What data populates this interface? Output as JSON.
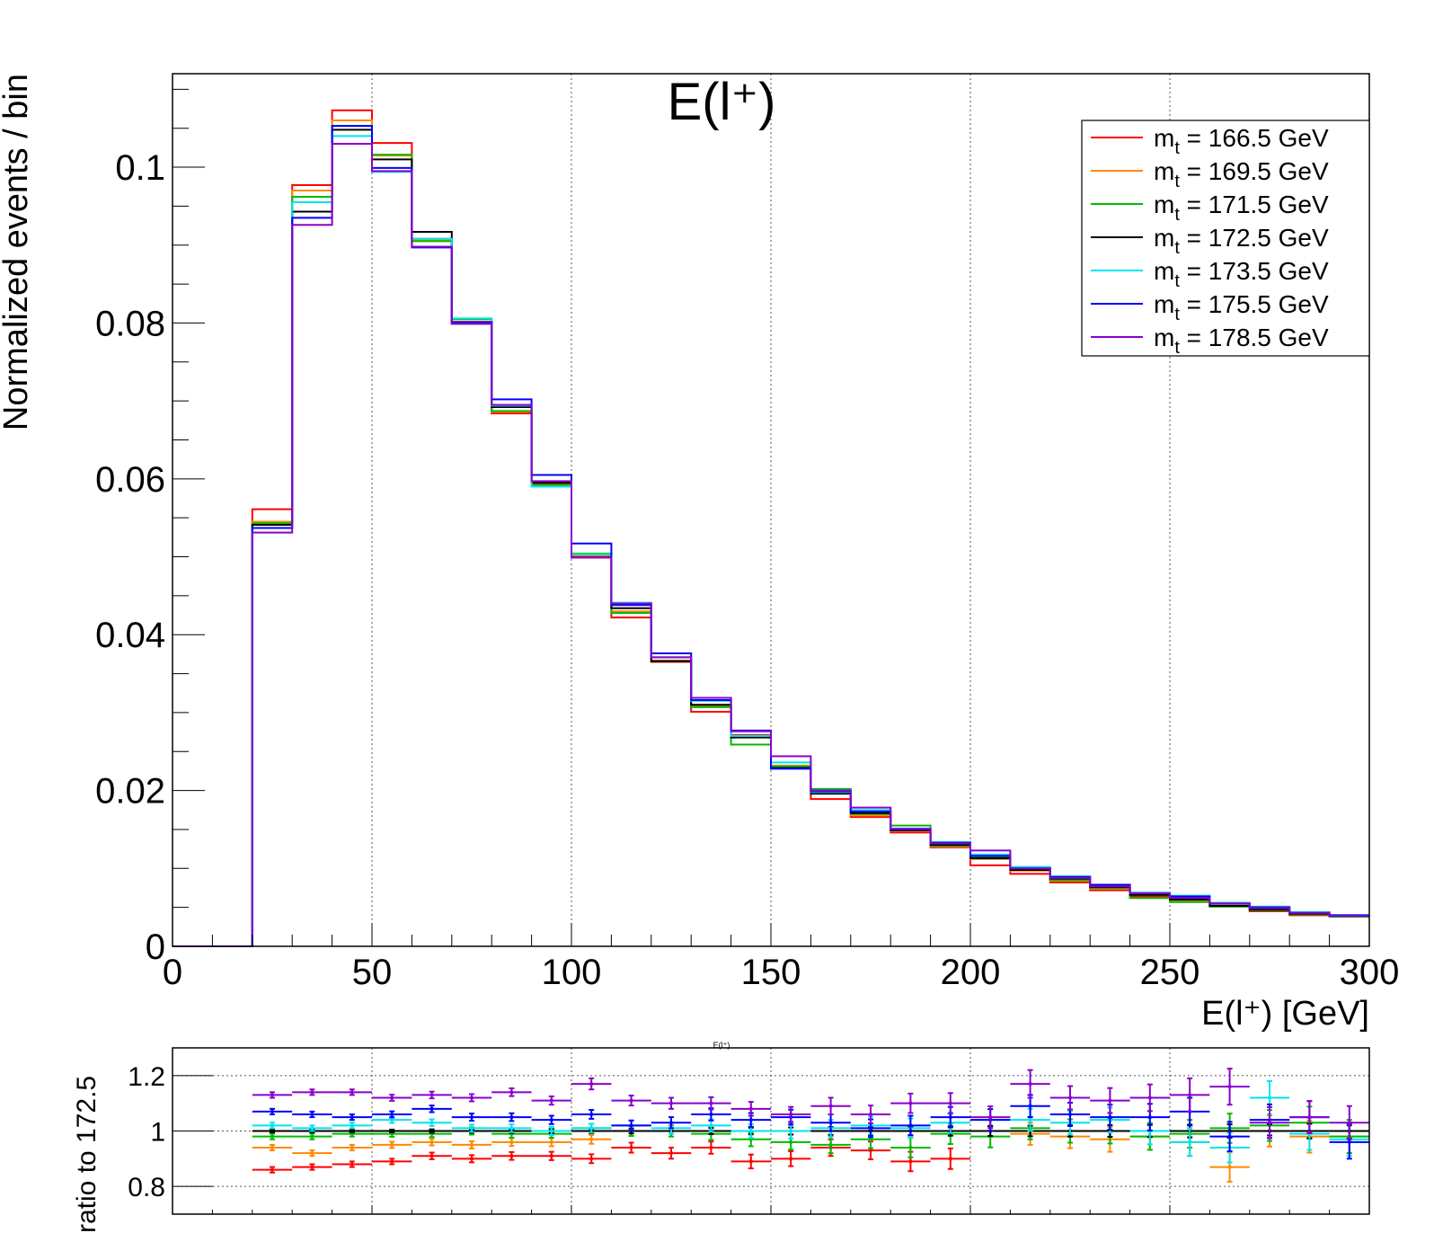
{
  "chart_data": [
    {
      "type": "line",
      "title": "E(l⁺)",
      "xlabel": "E(l⁺) [GeV]",
      "ylabel": "Normalized events / bin",
      "xlim": [
        0,
        300
      ],
      "ylim": [
        0,
        0.112
      ],
      "x_ticks": [
        "0",
        "50",
        "100",
        "150",
        "200",
        "250",
        "300"
      ],
      "y_ticks": [
        "0",
        "0.02",
        "0.04",
        "0.06",
        "0.08",
        "0.1"
      ],
      "grid": "vertical",
      "legend_position": "top-right",
      "bin_edges": [
        0,
        10,
        20,
        30,
        40,
        50,
        60,
        70,
        80,
        90,
        100,
        110,
        120,
        130,
        140,
        150,
        160,
        170,
        180,
        190,
        200,
        210,
        220,
        230,
        240,
        250,
        260,
        270,
        280,
        290,
        300
      ],
      "series": [
        {
          "name": "m_t = 166.5 GeV",
          "color": "#ff0000",
          "values": [
            0,
            0,
            0.0561,
            0.0977,
            0.1073,
            0.1031,
            0.0908,
            0.0801,
            0.0684,
            0.0594,
            0.0501,
            0.0422,
            0.0365,
            0.0301,
            0.0271,
            0.023,
            0.0189,
            0.0166,
            0.0146,
            0.0127,
            0.0104,
            0.0093,
            0.0082,
            0.0072,
            0.0064,
            0.0057,
            0.0051,
            0.0045,
            0.004,
            0.0038
          ]
        },
        {
          "name": "m_t = 169.5 GeV",
          "color": "#ff8800",
          "values": [
            0,
            0,
            0.0545,
            0.097,
            0.106,
            0.1015,
            0.0906,
            0.0802,
            0.0686,
            0.0595,
            0.0502,
            0.043,
            0.0367,
            0.0309,
            0.0269,
            0.0232,
            0.0196,
            0.0168,
            0.0148,
            0.0128,
            0.0112,
            0.0097,
            0.0084,
            0.0074,
            0.0066,
            0.0059,
            0.0052,
            0.0047,
            0.0042,
            0.0039
          ]
        },
        {
          "name": "m_t = 171.5 GeV",
          "color": "#00bb00",
          "values": [
            0,
            0,
            0.0543,
            0.0962,
            0.1053,
            0.1016,
            0.0905,
            0.0805,
            0.0687,
            0.0592,
            0.0504,
            0.0428,
            0.0366,
            0.0307,
            0.0259,
            0.0231,
            0.0202,
            0.017,
            0.0155,
            0.0129,
            0.0115,
            0.01,
            0.0085,
            0.0075,
            0.0062,
            0.0057,
            0.0051,
            0.0046,
            0.0041,
            0.0038
          ]
        },
        {
          "name": "m_t = 172.5 GeV",
          "color": "#000000",
          "values": [
            0,
            0,
            0.0541,
            0.0943,
            0.1048,
            0.101,
            0.0917,
            0.0799,
            0.0692,
            0.0595,
            0.0499,
            0.0434,
            0.0366,
            0.031,
            0.0268,
            0.0229,
            0.0196,
            0.0171,
            0.0149,
            0.013,
            0.0113,
            0.0098,
            0.0087,
            0.0076,
            0.0066,
            0.006,
            0.0052,
            0.0047,
            0.0042,
            0.0039
          ]
        },
        {
          "name": "m_t = 173.5 GeV",
          "color": "#00e5ee",
          "values": [
            0,
            0,
            0.0537,
            0.0955,
            0.104,
            0.0994,
            0.0908,
            0.0806,
            0.0694,
            0.059,
            0.0503,
            0.0441,
            0.0371,
            0.0315,
            0.027,
            0.0236,
            0.0198,
            0.0175,
            0.0151,
            0.0134,
            0.0118,
            0.0102,
            0.009,
            0.0079,
            0.0069,
            0.0065,
            0.0056,
            0.0051,
            0.0044,
            0.004
          ]
        },
        {
          "name": "m_t = 175.5 GeV",
          "color": "#0000ff",
          "values": [
            0,
            0,
            0.0537,
            0.0935,
            0.1053,
            0.0999,
            0.0897,
            0.0801,
            0.0702,
            0.0605,
            0.0517,
            0.0438,
            0.0376,
            0.0316,
            0.0277,
            0.0228,
            0.0199,
            0.0173,
            0.015,
            0.0133,
            0.0116,
            0.01,
            0.0089,
            0.0079,
            0.0068,
            0.0064,
            0.0055,
            0.005,
            0.0043,
            0.004
          ]
        },
        {
          "name": "m_t = 178.5 GeV",
          "color": "#8b00cc",
          "values": [
            0,
            0,
            0.0531,
            0.0926,
            0.103,
            0.0995,
            0.0898,
            0.0799,
            0.0695,
            0.0597,
            0.0499,
            0.044,
            0.0371,
            0.0319,
            0.0276,
            0.0244,
            0.02,
            0.0178,
            0.0151,
            0.0132,
            0.0123,
            0.01,
            0.0088,
            0.0077,
            0.0068,
            0.0062,
            0.0055,
            0.0049,
            0.0043,
            0.0039
          ]
        }
      ]
    },
    {
      "type": "scatter",
      "title": "E(l⁺)",
      "ylabel": "ratio to 172.5",
      "xlim": [
        0,
        300
      ],
      "ylim": [
        0.7,
        1.3
      ],
      "y_ticks": [
        "0.8",
        "1",
        "1.2"
      ],
      "grid": "both",
      "series": [
        {
          "name": "m_t = 166.5 GeV",
          "color": "#ff0000",
          "x": [
            25,
            35,
            45,
            55,
            65,
            75,
            85,
            95,
            105,
            115,
            125,
            135,
            145,
            155,
            165,
            175,
            185,
            195
          ],
          "y": [
            0.86,
            0.87,
            0.88,
            0.89,
            0.91,
            0.9,
            0.91,
            0.91,
            0.9,
            0.94,
            0.92,
            0.94,
            0.89,
            0.9,
            0.94,
            0.93,
            0.89,
            0.9
          ],
          "err": [
            0.01,
            0.01,
            0.01,
            0.01,
            0.012,
            0.013,
            0.014,
            0.015,
            0.016,
            0.018,
            0.02,
            0.022,
            0.025,
            0.027,
            0.03,
            0.032,
            0.035,
            0.037
          ]
        },
        {
          "name": "m_t = 169.5 GeV",
          "color": "#ff8800",
          "x": [
            25,
            35,
            45,
            55,
            65,
            75,
            85,
            95,
            105,
            215,
            225,
            235,
            245,
            255,
            265,
            275,
            285,
            295
          ],
          "y": [
            0.94,
            0.92,
            0.94,
            0.95,
            0.96,
            0.95,
            0.96,
            0.96,
            0.97,
            0.99,
            0.98,
            0.97,
            0.98,
            0.96,
            0.87,
            1.0,
            0.98,
            0.98
          ],
          "err": [
            0.01,
            0.01,
            0.01,
            0.011,
            0.012,
            0.013,
            0.014,
            0.015,
            0.016,
            0.04,
            0.042,
            0.045,
            0.048,
            0.05,
            0.053,
            0.056,
            0.058,
            0.06
          ]
        },
        {
          "name": "m_t = 171.5 GeV",
          "color": "#00bb00",
          "x": [
            25,
            35,
            45,
            55,
            65,
            75,
            85,
            95,
            105,
            115,
            125,
            135,
            145,
            155,
            165,
            175,
            185,
            195,
            205,
            215,
            225,
            235,
            245,
            255,
            265,
            275,
            285,
            295
          ],
          "y": [
            0.98,
            0.98,
            0.99,
            0.99,
            0.99,
            1.0,
            0.99,
            0.99,
            1.01,
            1.0,
            1.0,
            0.99,
            0.97,
            0.96,
            0.95,
            0.97,
            0.94,
            0.99,
            0.98,
            1.01,
            1.0,
            1.0,
            0.98,
            0.99,
            1.01,
            1.02,
            1.03,
            0.98
          ],
          "err": [
            0.01,
            0.01,
            0.01,
            0.011,
            0.012,
            0.013,
            0.014,
            0.015,
            0.016,
            0.018,
            0.02,
            0.022,
            0.025,
            0.027,
            0.03,
            0.032,
            0.035,
            0.037,
            0.039,
            0.04,
            0.042,
            0.045,
            0.048,
            0.05,
            0.053,
            0.056,
            0.058,
            0.06
          ]
        },
        {
          "name": "m_t = 172.5 GeV",
          "color": "#000000",
          "x": [
            25,
            35,
            45,
            55,
            65,
            75,
            85,
            95,
            105,
            115,
            125,
            135,
            145,
            155,
            165,
            175,
            185,
            195,
            205,
            215,
            225,
            235,
            245,
            255,
            265,
            275,
            285,
            295
          ],
          "y": [
            1.0,
            1.0,
            1.0,
            1.0,
            1.0,
            1.0,
            1.0,
            1.0,
            1.0,
            1.0,
            1.0,
            1.0,
            1.0,
            1.0,
            1.0,
            1.0,
            1.0,
            1.0,
            1.0,
            1.0,
            1.0,
            1.0,
            1.0,
            1.0,
            1.0,
            1.0,
            1.0,
            1.0
          ],
          "err": [
            0.005,
            0.005,
            0.005,
            0.005,
            0.006,
            0.006,
            0.007,
            0.007,
            0.008,
            0.009,
            0.01,
            0.011,
            0.012,
            0.013,
            0.014,
            0.015,
            0.016,
            0.017,
            0.018,
            0.019,
            0.02,
            0.021,
            0.022,
            0.023,
            0.024,
            0.025,
            0.026,
            0.027
          ]
        },
        {
          "name": "m_t = 173.5 GeV",
          "color": "#00e5ee",
          "x": [
            25,
            35,
            45,
            55,
            65,
            75,
            85,
            95,
            105,
            115,
            125,
            135,
            145,
            155,
            165,
            175,
            185,
            195,
            205,
            215,
            225,
            235,
            245,
            255,
            265,
            275,
            285,
            295
          ],
          "y": [
            1.02,
            1.01,
            1.02,
            1.04,
            1.03,
            1.01,
            1.01,
            1.0,
            1.01,
            1.02,
            1.01,
            1.02,
            1.0,
            1.0,
            1.01,
            1.02,
            1.01,
            1.03,
            1.04,
            1.04,
            1.03,
            1.04,
            1.0,
            0.96,
            0.94,
            1.12,
            0.99,
            0.97
          ],
          "err": [
            0.01,
            0.01,
            0.01,
            0.011,
            0.012,
            0.013,
            0.014,
            0.015,
            0.016,
            0.018,
            0.02,
            0.022,
            0.025,
            0.027,
            0.03,
            0.032,
            0.035,
            0.037,
            0.039,
            0.04,
            0.042,
            0.045,
            0.048,
            0.05,
            0.053,
            0.06,
            0.058,
            0.06
          ]
        },
        {
          "name": "m_t = 175.5 GeV",
          "color": "#0000ff",
          "x": [
            25,
            35,
            45,
            55,
            65,
            75,
            85,
            95,
            105,
            115,
            125,
            135,
            145,
            155,
            165,
            175,
            185,
            195,
            205,
            215,
            225,
            235,
            245,
            255,
            265,
            275,
            285,
            295
          ],
          "y": [
            1.07,
            1.06,
            1.05,
            1.06,
            1.08,
            1.05,
            1.05,
            1.04,
            1.06,
            1.02,
            1.03,
            1.06,
            1.04,
            1.05,
            1.03,
            1.01,
            1.02,
            1.05,
            1.04,
            1.09,
            1.06,
            1.05,
            1.05,
            1.07,
            0.98,
            1.04,
            1.05,
            0.96
          ],
          "err": [
            0.01,
            0.01,
            0.01,
            0.011,
            0.012,
            0.013,
            0.014,
            0.015,
            0.016,
            0.018,
            0.02,
            0.022,
            0.025,
            0.027,
            0.03,
            0.032,
            0.035,
            0.037,
            0.039,
            0.04,
            0.042,
            0.045,
            0.048,
            0.05,
            0.053,
            0.056,
            0.058,
            0.06
          ]
        },
        {
          "name": "m_t = 178.5 GeV",
          "color": "#8b00cc",
          "x": [
            25,
            35,
            45,
            55,
            65,
            75,
            85,
            95,
            105,
            115,
            125,
            135,
            145,
            155,
            165,
            175,
            185,
            195,
            205,
            215,
            225,
            235,
            245,
            255,
            265,
            275,
            285,
            295
          ],
          "y": [
            1.13,
            1.14,
            1.14,
            1.12,
            1.13,
            1.12,
            1.14,
            1.11,
            1.17,
            1.11,
            1.1,
            1.1,
            1.08,
            1.06,
            1.09,
            1.06,
            1.1,
            1.1,
            1.05,
            1.17,
            1.12,
            1.11,
            1.12,
            1.13,
            1.16,
            1.03,
            1.05,
            1.03
          ],
          "err": [
            0.01,
            0.01,
            0.01,
            0.011,
            0.012,
            0.013,
            0.014,
            0.015,
            0.02,
            0.018,
            0.02,
            0.022,
            0.025,
            0.027,
            0.03,
            0.032,
            0.035,
            0.037,
            0.039,
            0.05,
            0.042,
            0.045,
            0.048,
            0.06,
            0.065,
            0.056,
            0.058,
            0.06
          ]
        }
      ]
    }
  ]
}
